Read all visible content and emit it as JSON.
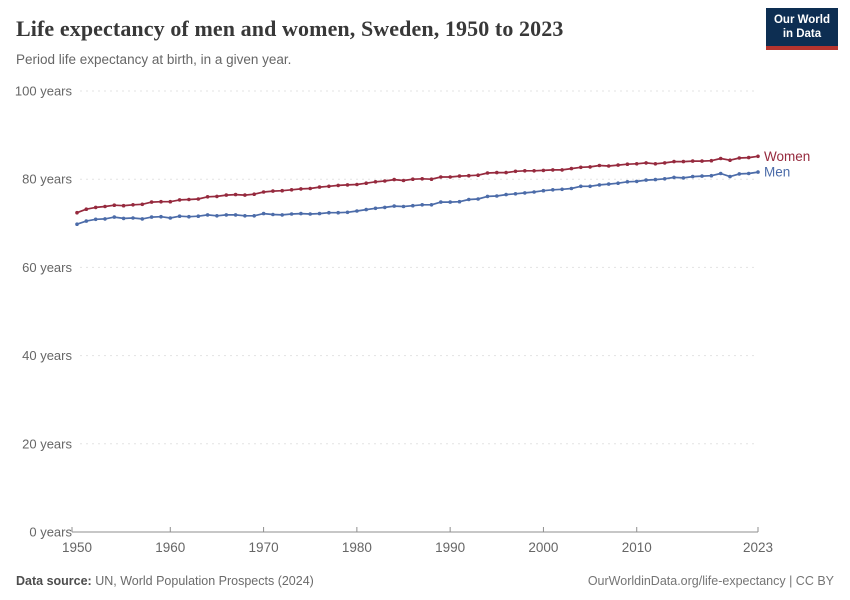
{
  "header": {
    "title": "Life expectancy of men and women, Sweden, 1950 to 2023",
    "subtitle": "Period life expectancy at birth, in a given year."
  },
  "logo": {
    "line1": "Our World",
    "line2": "in Data",
    "bg_color": "#0d2e52",
    "accent_color": "#b5342e"
  },
  "footer": {
    "source_label": "Data source:",
    "source_value": " UN, World Population Prospects (2024)",
    "attribution": "OurWorldinData.org/life-expectancy | CC BY"
  },
  "chart_data": {
    "type": "line",
    "title": "Life expectancy of men and women, Sweden, 1950 to 2023",
    "subtitle": "Period life expectancy at birth, in a given year.",
    "xlabel": "",
    "ylabel": "",
    "xlim": [
      1950,
      2023
    ],
    "ylim": [
      0,
      100
    ],
    "x_ticks": [
      1950,
      1960,
      1970,
      1980,
      1990,
      2000,
      2010,
      2023
    ],
    "y_ticks": [
      0,
      20,
      40,
      60,
      80,
      100
    ],
    "y_tick_suffix": " years",
    "grid": "horizontal-dashed",
    "legend_position": "line-end-labels",
    "marker": "circle",
    "x": [
      1950,
      1951,
      1952,
      1953,
      1954,
      1955,
      1956,
      1957,
      1958,
      1959,
      1960,
      1961,
      1962,
      1963,
      1964,
      1965,
      1966,
      1967,
      1968,
      1969,
      1970,
      1971,
      1972,
      1973,
      1974,
      1975,
      1976,
      1977,
      1978,
      1979,
      1980,
      1981,
      1982,
      1983,
      1984,
      1985,
      1986,
      1987,
      1988,
      1989,
      1990,
      1991,
      1992,
      1993,
      1994,
      1995,
      1996,
      1997,
      1998,
      1999,
      2000,
      2001,
      2002,
      2003,
      2004,
      2005,
      2006,
      2007,
      2008,
      2009,
      2010,
      2011,
      2012,
      2013,
      2014,
      2015,
      2016,
      2017,
      2018,
      2019,
      2020,
      2021,
      2022,
      2023
    ],
    "series": [
      {
        "name": "Women",
        "color": "#962A3E",
        "values": [
          72.4,
          73.2,
          73.6,
          73.8,
          74.1,
          74.0,
          74.2,
          74.3,
          74.8,
          74.9,
          74.9,
          75.3,
          75.4,
          75.5,
          76.0,
          76.1,
          76.4,
          76.5,
          76.4,
          76.6,
          77.1,
          77.3,
          77.4,
          77.6,
          77.8,
          77.9,
          78.2,
          78.4,
          78.6,
          78.7,
          78.8,
          79.1,
          79.4,
          79.6,
          79.9,
          79.7,
          80.0,
          80.1,
          80.0,
          80.5,
          80.5,
          80.7,
          80.8,
          80.9,
          81.4,
          81.5,
          81.5,
          81.8,
          81.9,
          81.9,
          82.0,
          82.1,
          82.1,
          82.4,
          82.7,
          82.8,
          83.1,
          83.0,
          83.2,
          83.4,
          83.5,
          83.7,
          83.5,
          83.7,
          84.0,
          84.0,
          84.1,
          84.1,
          84.2,
          84.7,
          84.3,
          84.8,
          84.9,
          85.2
        ]
      },
      {
        "name": "Men",
        "color": "#4C6CA9",
        "values": [
          69.8,
          70.5,
          70.9,
          71.0,
          71.4,
          71.1,
          71.2,
          71.0,
          71.4,
          71.5,
          71.2,
          71.6,
          71.5,
          71.6,
          71.9,
          71.7,
          71.9,
          71.9,
          71.7,
          71.7,
          72.2,
          72.0,
          71.9,
          72.1,
          72.2,
          72.1,
          72.2,
          72.4,
          72.4,
          72.5,
          72.8,
          73.1,
          73.4,
          73.6,
          73.9,
          73.8,
          74.0,
          74.2,
          74.2,
          74.8,
          74.8,
          74.9,
          75.4,
          75.5,
          76.1,
          76.2,
          76.5,
          76.7,
          76.9,
          77.1,
          77.4,
          77.6,
          77.7,
          77.9,
          78.4,
          78.4,
          78.7,
          78.9,
          79.1,
          79.4,
          79.5,
          79.8,
          79.9,
          80.1,
          80.4,
          80.3,
          80.6,
          80.7,
          80.8,
          81.3,
          80.6,
          81.2,
          81.3,
          81.6
        ]
      }
    ]
  },
  "chart_style": {
    "grid_color": "#e3e3e3",
    "axis_color": "#8f8f8f",
    "tick_label_color": "#666666"
  }
}
